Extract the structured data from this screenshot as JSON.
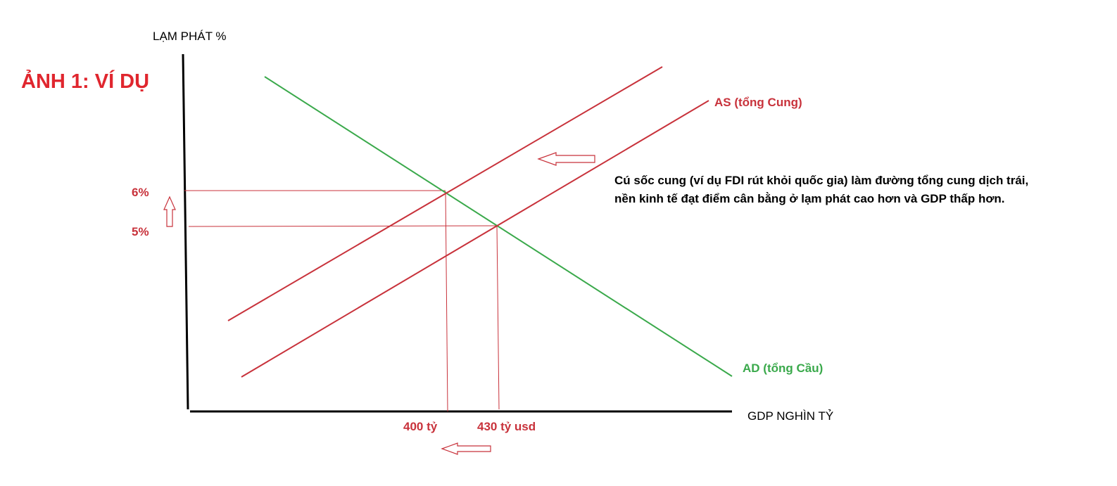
{
  "title": "ẢNH 1: VÍ DỤ",
  "axes": {
    "y_label": "LẠM PHÁT %",
    "x_label": "GDP NGHÌN TỶ"
  },
  "curves": {
    "as": "AS (tổng Cung)",
    "ad": "AD (tổng Cầu)"
  },
  "levels": {
    "inflation_high": "6%",
    "inflation_low": "5%",
    "gdp_low": "400 tỷ",
    "gdp_high": "430 tỷ usd"
  },
  "note": "Cú sốc cung (ví dụ FDI rút khỏi quốc gia) làm đường tổng cung dịch trái, nền kinh tế đạt điểm cân bằng ở lạm phát cao hơn và GDP thấp hơn."
}
